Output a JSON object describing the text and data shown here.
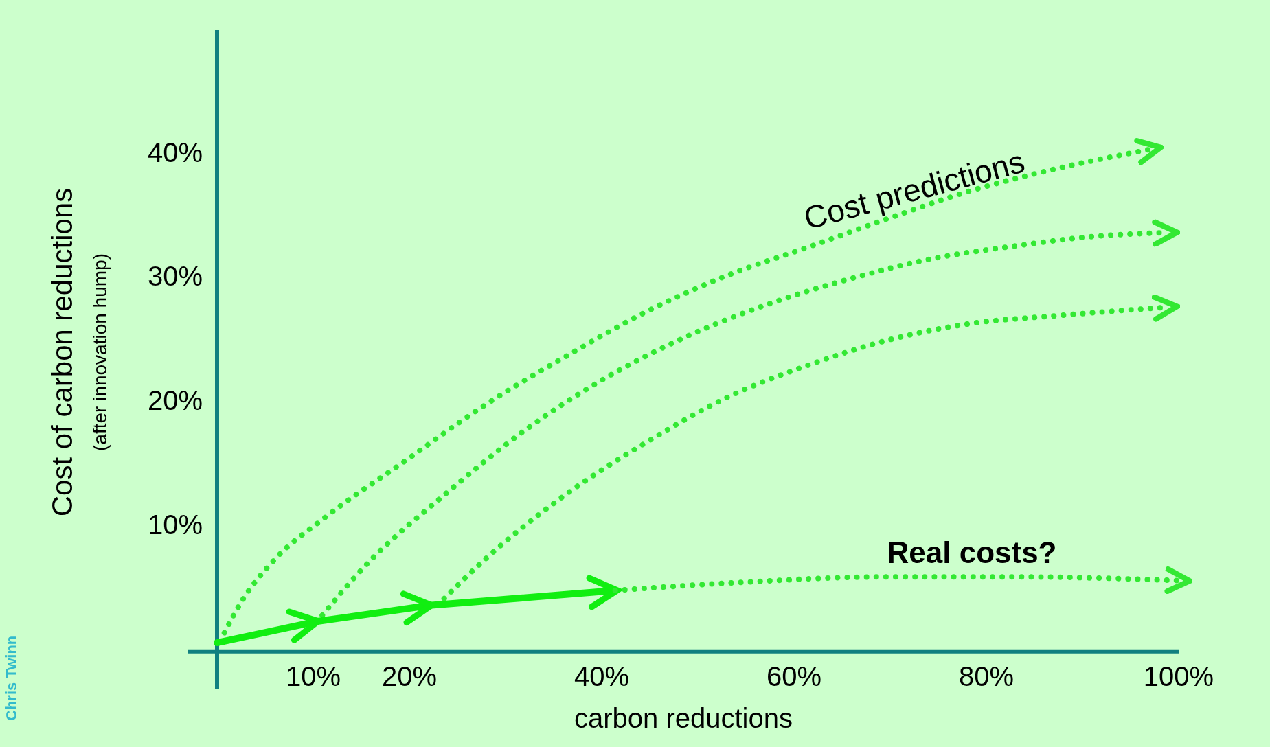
{
  "chart_data": {
    "type": "line",
    "xlabel": "carbon reductions",
    "ylabel": "Cost of carbon reductions",
    "xlim": [
      -3,
      100
    ],
    "ylim": [
      -3,
      50
    ],
    "xticks": [
      {
        "value": 10,
        "label": "10%"
      },
      {
        "value": 20,
        "label": "20%"
      },
      {
        "value": 40,
        "label": "40%"
      },
      {
        "value": 60,
        "label": "60%"
      },
      {
        "value": 80,
        "label": "80%"
      },
      {
        "value": 100,
        "label": "100%"
      }
    ],
    "yticks": [
      {
        "value": 10,
        "label": "10%"
      },
      {
        "value": 20,
        "label": "20%"
      },
      {
        "value": 30,
        "label": "30%"
      },
      {
        "value": 40,
        "label": "40%"
      }
    ],
    "grid": false,
    "series": [
      {
        "color": "#33e833",
        "line_style": "dotted",
        "x": [
          0.3,
          2.7,
          6,
          11.1,
          19.5,
          28,
          36.4,
          44.8,
          53.2,
          61.7,
          70,
          78.5,
          87,
          97
        ],
        "values": [
          0.8,
          4.2,
          7.4,
          10.7,
          15.3,
          19.9,
          23.8,
          27.4,
          30.3,
          32.6,
          34.9,
          37.1,
          38.8,
          40.4
        ]
      },
      {
        "color": "#33e833",
        "line_style": "dotted",
        "x": [
          10.3,
          15.3,
          23.8,
          32.2,
          40.6,
          49,
          57.5,
          65.9,
          74.3,
          82.7,
          91.2,
          98.7
        ],
        "values": [
          2.3,
          6.8,
          12.7,
          17.9,
          22.1,
          25.4,
          28,
          30,
          31.6,
          32.6,
          33.4,
          33.7
        ]
      },
      {
        "color": "#33e833",
        "line_style": "dotted",
        "x": [
          22.9,
          28,
          36.4,
          44.8,
          53.2,
          61.7,
          70,
          78.5,
          87,
          98.7
        ],
        "values": [
          3.7,
          7.5,
          12.7,
          16.9,
          20.5,
          23.1,
          25.1,
          26.4,
          27,
          27.7
        ]
      },
      {
        "color": "#11ee11",
        "line_style": "solid",
        "x": [
          0,
          10.3,
          22.1,
          41.4
        ],
        "values": [
          0.7,
          2.4,
          3.7,
          4.9
        ]
      },
      {
        "color": "#33e833",
        "line_style": "dotted",
        "x": [
          41.4,
          53.2,
          70,
          82.7,
          100
        ],
        "values": [
          4.9,
          5.5,
          6,
          6,
          5.7
        ]
      }
    ],
    "annotations": [
      "Cost predictions",
      "Real costs?",
      "(after innovation hump)",
      "Chris Twinn"
    ]
  }
}
